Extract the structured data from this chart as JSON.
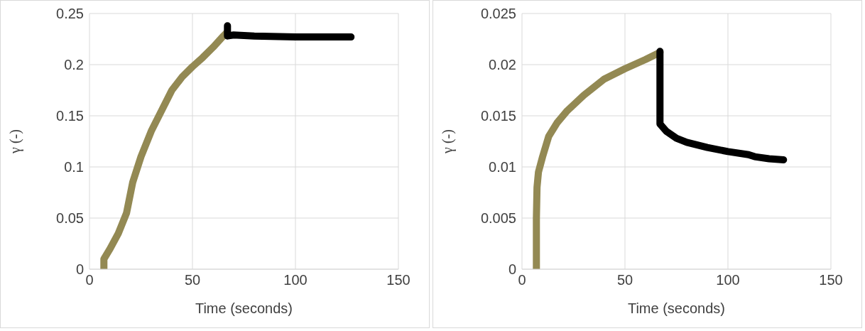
{
  "chart_data": [
    {
      "type": "line",
      "xlabel": "Time (seconds)",
      "ylabel": "γ (-)",
      "xlim": [
        0,
        150
      ],
      "xticks": [
        0,
        50,
        100,
        150
      ],
      "ylim": [
        0,
        0.25
      ],
      "yticks": [
        0,
        0.05,
        0.1,
        0.15,
        0.2,
        0.25
      ],
      "grid": true,
      "line_style": "solid",
      "series": [
        {
          "color": "#938953",
          "x": [
            7,
            7,
            10,
            14,
            18,
            21,
            25,
            30,
            35,
            40,
            45,
            50,
            55,
            60,
            65,
            67
          ],
          "values": [
            0,
            0.01,
            0.02,
            0.035,
            0.055,
            0.085,
            0.11,
            0.135,
            0.155,
            0.175,
            0.188,
            0.198,
            0.207,
            0.217,
            0.228,
            0.232
          ]
        },
        {
          "color": "#000000",
          "x": [
            67,
            67,
            70,
            80,
            100,
            127
          ],
          "values": [
            0.238,
            0.228,
            0.229,
            0.228,
            0.227,
            0.227
          ]
        }
      ]
    },
    {
      "type": "line",
      "xlabel": "Time (seconds)",
      "ylabel": "γ (-)",
      "xlim": [
        0,
        150
      ],
      "xticks": [
        0,
        50,
        100,
        150
      ],
      "ylim": [
        0,
        0.025
      ],
      "yticks": [
        0,
        0.005,
        0.01,
        0.015,
        0.02,
        0.025
      ],
      "grid": true,
      "line_style": "solid",
      "series": [
        {
          "color": "#938953",
          "x": [
            7,
            7,
            7.3,
            8,
            10,
            13,
            17,
            22,
            30,
            40,
            50,
            60,
            67
          ],
          "values": [
            0,
            0.005,
            0.008,
            0.0095,
            0.011,
            0.013,
            0.0143,
            0.0155,
            0.017,
            0.0186,
            0.0196,
            0.0205,
            0.0212
          ]
        },
        {
          "color": "#000000",
          "x": [
            67,
            67,
            70,
            75,
            80,
            90,
            100,
            110,
            113,
            120,
            127
          ],
          "values": [
            0.0213,
            0.0142,
            0.0135,
            0.0128,
            0.0124,
            0.0119,
            0.0115,
            0.0112,
            0.011,
            0.0108,
            0.0107
          ]
        }
      ]
    }
  ]
}
